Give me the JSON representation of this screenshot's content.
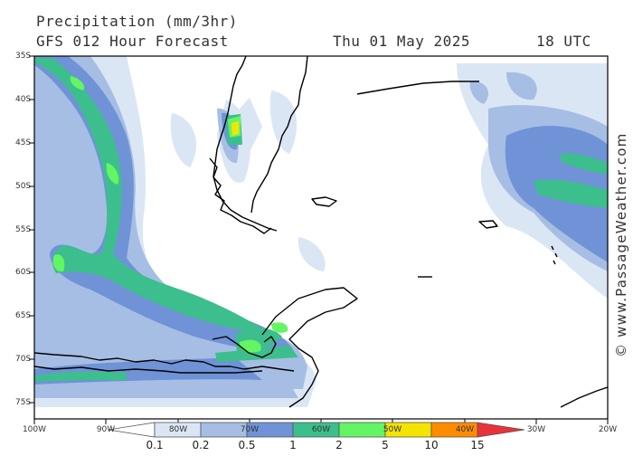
{
  "header": {
    "title": "Precipitation (mm/3hr)",
    "model": "GFS 012 Hour Forecast",
    "date": "Thu 01 May 2025",
    "time": "18 UTC"
  },
  "credit": "© www.PassageWeather.com",
  "map": {
    "region": "South America / Drake Passage / Antarctic Peninsula",
    "lat_labels": [
      "35S",
      "40S",
      "45S",
      "50S",
      "55S",
      "60S",
      "65S",
      "70S",
      "75S"
    ],
    "lon_labels": [
      "100W",
      "90W",
      "80W",
      "70W",
      "60W",
      "50W",
      "40W",
      "30W",
      "20W"
    ]
  },
  "colorbar": {
    "labels": [
      "0.1",
      "0.2",
      "0.5",
      "1",
      "2",
      "5",
      "10",
      "15"
    ],
    "colors": [
      "#ffffff",
      "#dbe6f5",
      "#a6bee4",
      "#6f93d6",
      "#3cbf8c",
      "#63f563",
      "#f5e400",
      "#ff8c00",
      "#e8323c"
    ]
  },
  "colors": {
    "very_light": "#dbe6f5",
    "light": "#a6bee4",
    "medium": "#6f93d6",
    "teal": "#3cbf8c",
    "green": "#63f563",
    "yellow": "#f5e400"
  }
}
